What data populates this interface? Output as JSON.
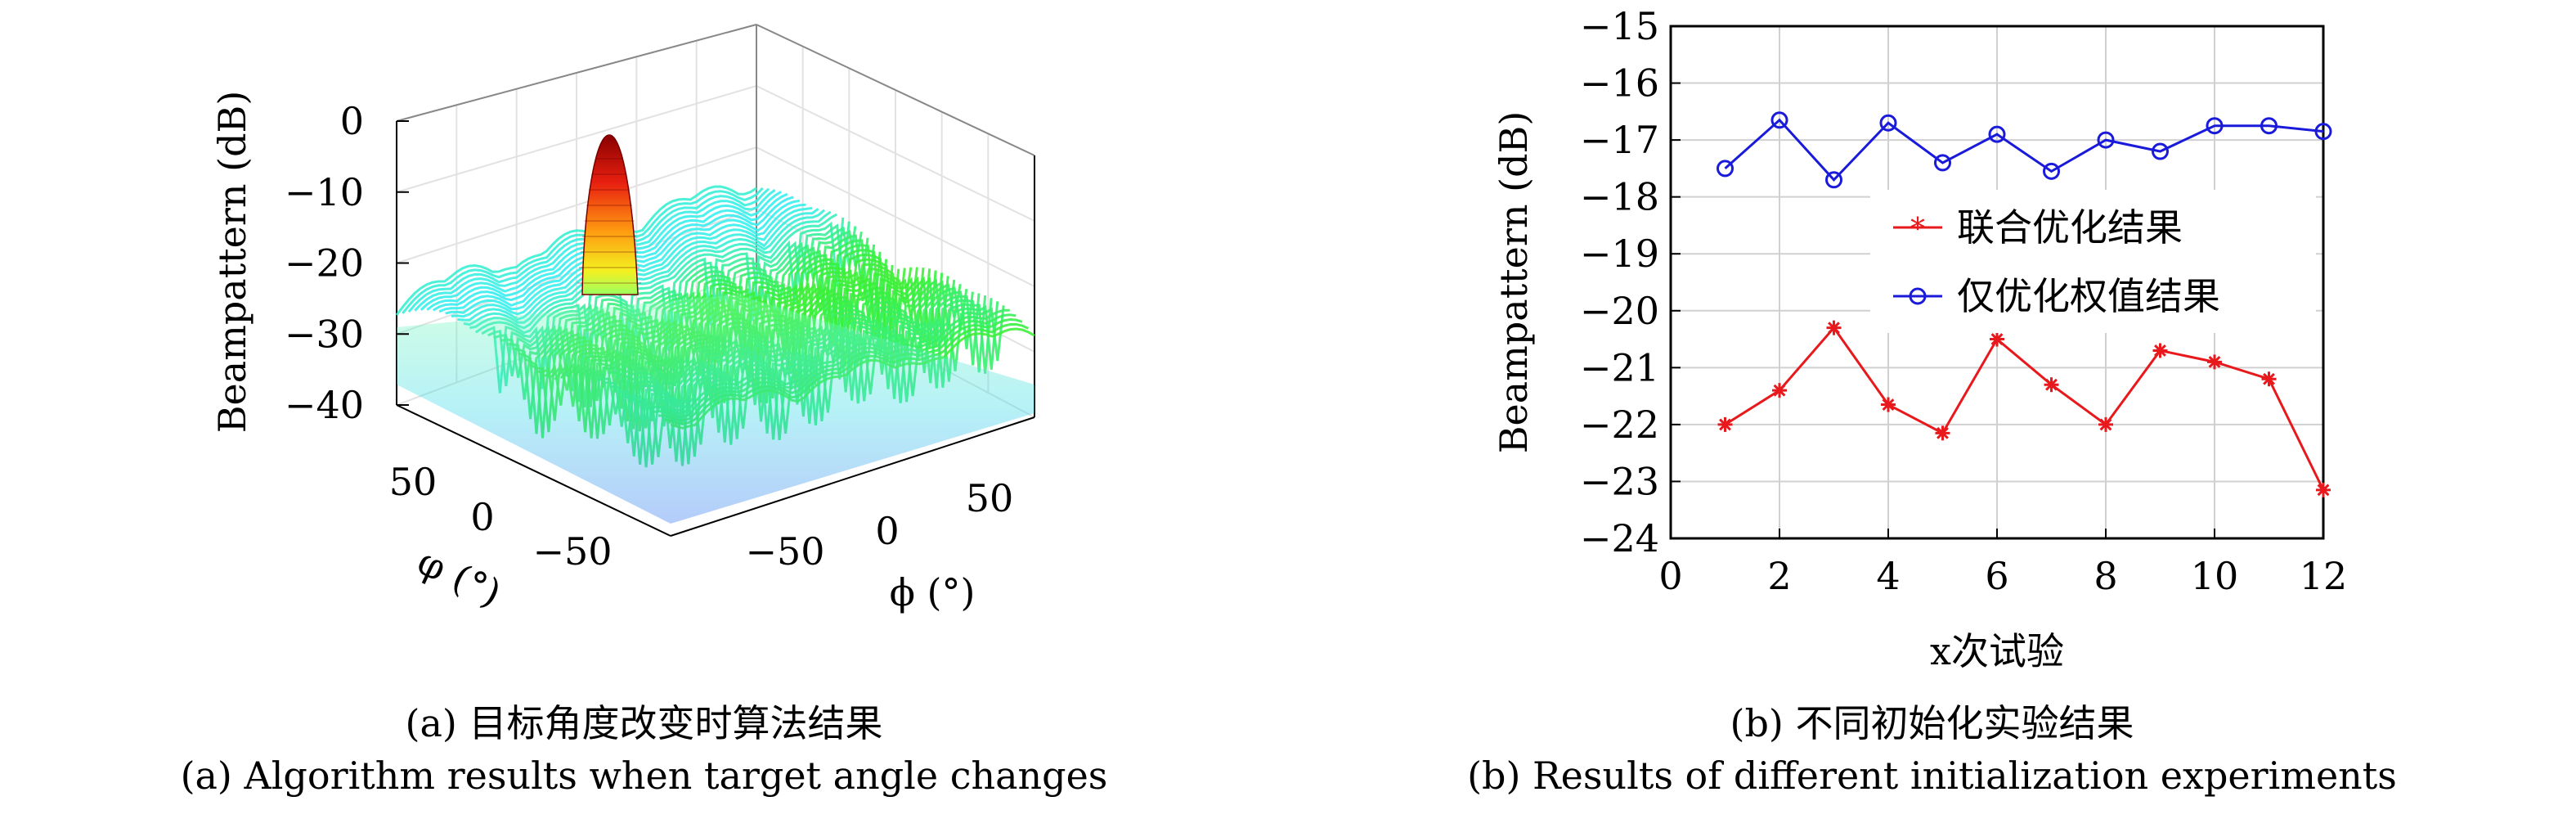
{
  "chart_data": [
    {
      "type": "surface",
      "panel": "a",
      "zlabel": "Beampattern (dB)",
      "z_ticks": [
        "0",
        "-10",
        "-20",
        "-30",
        "-40"
      ],
      "zlim": [
        -40,
        0
      ],
      "x_axis_label": "ϕ (°)",
      "x_ticks": [
        "-50",
        "0",
        "50"
      ],
      "y_axis_label": "φ (°)",
      "y_ticks": [
        "50",
        "0",
        "-50"
      ],
      "peak_db": 0,
      "floor_db": -40,
      "colormap": "jet",
      "caption_cn": "(a) 目标角度改变时算法结果",
      "caption_en": "(a) Algorithm results when target angle changes"
    },
    {
      "type": "line",
      "panel": "b",
      "xlabel": "x次试验",
      "ylabel": "Beampattern (dB)",
      "xlim": [
        0,
        12
      ],
      "ylim": [
        -24,
        -15
      ],
      "x_ticks": [
        "0",
        "2",
        "4",
        "6",
        "8",
        "10",
        "12"
      ],
      "y_ticks": [
        "-15",
        "-16",
        "-17",
        "-18",
        "-19",
        "-20",
        "-21",
        "-22",
        "-23",
        "-24"
      ],
      "grid": true,
      "legend_position": "center-right",
      "x": [
        1,
        2,
        3,
        4,
        5,
        6,
        7,
        8,
        9,
        10,
        11,
        12
      ],
      "series": [
        {
          "name": "联合优化结果",
          "color": "#e8191c",
          "marker": "star",
          "values": [
            -22.0,
            -21.4,
            -20.3,
            -21.65,
            -22.15,
            -20.5,
            -21.3,
            -22.0,
            -20.7,
            -20.9,
            -21.2,
            -23.15
          ]
        },
        {
          "name": "仅优化权值结果",
          "color": "#1a1adb",
          "marker": "circle",
          "values": [
            -17.5,
            -16.65,
            -17.7,
            -16.7,
            -17.4,
            -16.9,
            -17.55,
            -17.0,
            -17.2,
            -16.75,
            -16.75,
            -16.85
          ]
        }
      ],
      "caption_cn": "(b) 不同初始化实验结果",
      "caption_en": "(b) Results of different initialization experiments"
    }
  ]
}
